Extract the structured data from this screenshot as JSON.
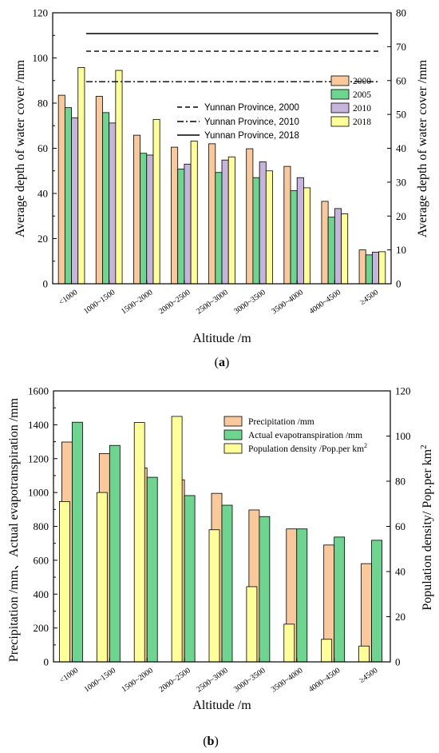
{
  "chart_data": [
    {
      "type": "bar",
      "panel_label": "a",
      "xlabel": "Altitude /m",
      "ylabel": "Average depth of water cover /mm",
      "ylabel_right": "Average depth of water cover /mm",
      "ylim": [
        0,
        120
      ],
      "ylim_right": [
        0,
        80
      ],
      "yticks": [
        "0",
        "20",
        "40",
        "60",
        "80",
        "100",
        "120"
      ],
      "yticks_right": [
        "0",
        "10",
        "20",
        "30",
        "40",
        "50",
        "60",
        "70",
        "80"
      ],
      "categories": [
        "<1000",
        "1000~1500",
        "1500~2000",
        "2000~2500",
        "2500~3000",
        "3000~3500",
        "3500~4000",
        "4000~4500",
        "≥4500"
      ],
      "series": [
        {
          "name": "2000",
          "color": "#f9c89b",
          "values": [
            83.5,
            83,
            65.8,
            60.5,
            62,
            59.8,
            52,
            36.5,
            15
          ]
        },
        {
          "name": "2005",
          "color": "#6dd58f",
          "values": [
            78,
            75.8,
            57.8,
            50.8,
            49.3,
            47,
            41.2,
            29.5,
            12.8
          ]
        },
        {
          "name": "2010",
          "color": "#c6b4dc",
          "values": [
            73.5,
            71.2,
            57,
            53,
            54.8,
            54,
            47,
            33.3,
            14
          ]
        },
        {
          "name": "2018",
          "color": "#ffff99",
          "values": [
            95.8,
            94.5,
            72.8,
            63.2,
            56.2,
            50,
            42.5,
            31,
            14.2
          ]
        }
      ],
      "reference_lines": [
        {
          "name": "Yunnan Province, 2000",
          "style": "dashed",
          "value": 103
        },
        {
          "name": "Yunnan Province, 2010",
          "style": "dashdot",
          "value": 89.5
        },
        {
          "name": "Yunnan Province, 2018",
          "style": "solid",
          "value": 110.8
        }
      ],
      "legend_position": "right-center"
    },
    {
      "type": "bar",
      "panel_label": "b",
      "xlabel": "Altitude /m",
      "ylabel": "Precipitation /mm、Actual evapotranspiration /mm",
      "ylabel_right_main": "Population density/ Pop.per km",
      "ylabel_right_sup": "2",
      "ylim": [
        0,
        1600
      ],
      "ylim_right": [
        0,
        120
      ],
      "yticks": [
        "0",
        "200",
        "400",
        "600",
        "800",
        "1000",
        "1200",
        "1400",
        "1600"
      ],
      "yticks_right": [
        "0",
        "20",
        "40",
        "60",
        "80",
        "100",
        "120"
      ],
      "categories": [
        "<1000",
        "1000~1500",
        "1500~2000",
        "2000~2500",
        "2500~3000",
        "3000~3500",
        "3500~4000",
        "4000~4500",
        "≥4500"
      ],
      "series": [
        {
          "name": "Precipitation /mm",
          "color": "#f9c89b",
          "axis": "left",
          "values": [
            1298,
            1230,
            1145,
            1075,
            995,
            897,
            785,
            690,
            580
          ]
        },
        {
          "name": "Actual evapotranspiration /mm",
          "color": "#6dd58f",
          "axis": "left",
          "values": [
            1415,
            1278,
            1090,
            982,
            925,
            858,
            785,
            737,
            718
          ]
        },
        {
          "name": "Population density /Pop.per km",
          "name_sup": "2",
          "color": "#ffff99",
          "axis": "right",
          "values": [
            71,
            75,
            106,
            108.7,
            58.5,
            33.3,
            16.7,
            10,
            7
          ]
        }
      ],
      "legend_position": "top-right"
    }
  ]
}
